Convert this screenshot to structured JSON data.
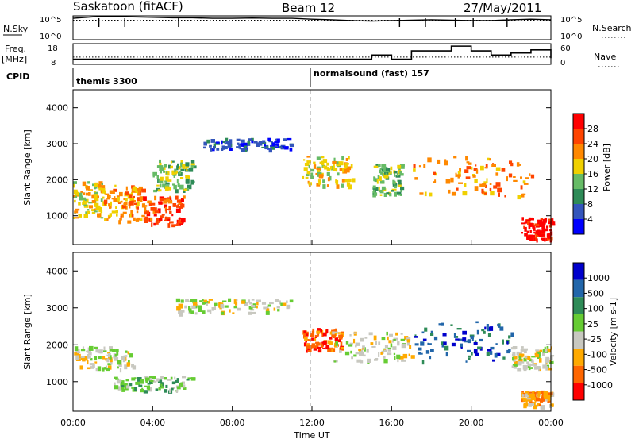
{
  "header": {
    "station": "Saskatoon (fitACF)",
    "beam": "Beam 12",
    "date": "27/May/2011"
  },
  "nsky_panel": {
    "left_label": "N.Sky",
    "left_ticks": [
      "10^5",
      "10^0"
    ],
    "right_ticks": [
      "10^5",
      "10^0"
    ],
    "right_label": "N.Search",
    "right_legend_line": "dotted"
  },
  "freq_panel": {
    "left_label_line1": "Freq.",
    "left_label_line2": "[MHz]",
    "left_ticks": [
      "18",
      "8"
    ],
    "right_ticks": [
      "60",
      "0"
    ],
    "right_label": "Nave",
    "right_legend_line": "dotted"
  },
  "cpid_panel": {
    "label": "CPID",
    "entries": [
      {
        "name": "themis 3300",
        "start_hour": 0
      },
      {
        "name": "normalsound (fast) 157",
        "start_hour": 12
      }
    ]
  },
  "x_axis": {
    "label": "Time UT",
    "ticks": [
      "00:00",
      "04:00",
      "08:00",
      "12:00",
      "16:00",
      "20:00",
      "00:00"
    ],
    "range_hours": [
      0,
      24
    ]
  },
  "colors": {
    "power": [
      "#0000ff",
      "#3355bb",
      "#2e8b57",
      "#66bb66",
      "#f0d000",
      "#ff8800",
      "#ff4400",
      "#ff0000"
    ],
    "velocity": [
      "#ff0000",
      "#ff6600",
      "#ffaa00",
      "#c8c8c0",
      "#66cc33",
      "#2e8b57",
      "#2266aa",
      "#0000cc"
    ]
  },
  "chart_data": [
    {
      "type": "line",
      "panel": "N.Sky / N.Search",
      "x": [
        0,
        1,
        2,
        3,
        4,
        5,
        6,
        7,
        8,
        9,
        10,
        11,
        12,
        13,
        14,
        15,
        16,
        17,
        18,
        19,
        20,
        21,
        22,
        23,
        24
      ],
      "series": [
        {
          "name": "N.Sky",
          "values": [
            30000,
            60000,
            70000,
            60000,
            50000,
            40000,
            40000,
            30000,
            30000,
            35000,
            30000,
            30000,
            20000,
            15000,
            10000,
            8000,
            10000,
            12000,
            15000,
            12000,
            10000,
            10000,
            15000,
            20000,
            15000
          ]
        },
        {
          "name": "N.Search",
          "values": [
            12000,
            12000,
            12000,
            12000,
            12000,
            12000,
            12000,
            12000,
            12000,
            12000,
            12000,
            12000,
            12000,
            12000,
            12000,
            12000,
            12000,
            12000,
            12000,
            12000,
            12000,
            12000,
            12000,
            12000,
            12000
          ]
        }
      ],
      "ylim_log10": [
        0,
        5
      ]
    },
    {
      "type": "line",
      "panel": "Freq / Nave",
      "x": [
        0,
        1,
        2,
        3,
        4,
        5,
        6,
        7,
        8,
        9,
        10,
        11,
        12,
        13,
        14,
        15,
        16,
        17,
        18,
        19,
        20,
        21,
        22,
        23,
        24
      ],
      "series": [
        {
          "name": "Freq",
          "values": [
            10.5,
            10.5,
            10.5,
            10.5,
            10.5,
            10.5,
            10.5,
            10.5,
            10.5,
            10.5,
            10.5,
            10.5,
            10.5,
            10.5,
            10.5,
            12.5,
            10.5,
            14.5,
            14.5,
            16.8,
            14.5,
            12.5,
            13.5,
            15,
            11
          ]
        },
        {
          "name": "Nave",
          "values": [
            21,
            21,
            21,
            21,
            21,
            21,
            21,
            21,
            21,
            21,
            21,
            21,
            21,
            21,
            21,
            21,
            21,
            21,
            21,
            21,
            21,
            21,
            21,
            21,
            21
          ]
        }
      ],
      "ylim_freq": [
        8,
        18
      ],
      "ylim_nave": [
        0,
        60
      ]
    },
    {
      "type": "heatmap",
      "panel": "Power",
      "ylabel": "Slant Range [km]",
      "yticks": [
        1000,
        2000,
        3000,
        4000
      ],
      "ylim": [
        200,
        4500
      ],
      "colorbar_label": "Power [dB]",
      "colorbar_ticks": [
        4,
        8,
        12,
        16,
        20,
        24,
        28
      ],
      "regions": [
        {
          "t0": 0,
          "t1": 1.5,
          "r0": 900,
          "r1": 1900,
          "level": 4
        },
        {
          "t0": 1.5,
          "t1": 3.5,
          "r0": 800,
          "r1": 1800,
          "level": 5
        },
        {
          "t0": 3.5,
          "t1": 5.5,
          "r0": 700,
          "r1": 1500,
          "level": 6
        },
        {
          "t0": 4,
          "t1": 6,
          "r0": 1600,
          "r1": 2500,
          "level": 3
        },
        {
          "t0": 6.5,
          "t1": 11,
          "r0": 2800,
          "r1": 3100,
          "level": 1
        },
        {
          "t0": 11.5,
          "t1": 14,
          "r0": 1800,
          "r1": 2600,
          "level": 4
        },
        {
          "t0": 15,
          "t1": 16.5,
          "r0": 1500,
          "r1": 2400,
          "level": 3
        },
        {
          "t0": 17,
          "t1": 23,
          "r0": 1500,
          "r1": 2600,
          "level": 5
        },
        {
          "t0": 22.5,
          "t1": 24,
          "r0": 300,
          "r1": 900,
          "level": 7
        }
      ]
    },
    {
      "type": "heatmap",
      "panel": "Velocity",
      "ylabel": "Slant Range [km]",
      "yticks": [
        1000,
        2000,
        3000,
        4000
      ],
      "ylim": [
        200,
        4500
      ],
      "colorbar_label": "Velocity [m s-1]",
      "colorbar_ticks": [
        1000,
        500,
        100,
        25,
        -25,
        -100,
        -500,
        -1000
      ],
      "regions": [
        {
          "t0": 0,
          "t1": 3,
          "r0": 1300,
          "r1": 1900,
          "level": 3
        },
        {
          "t0": 2,
          "t1": 6,
          "r0": 700,
          "r1": 1100,
          "level": 4
        },
        {
          "t0": 5,
          "t1": 11,
          "r0": 2800,
          "r1": 3200,
          "level": 3
        },
        {
          "t0": 11.5,
          "t1": 13.5,
          "r0": 1800,
          "r1": 2400,
          "level": 1
        },
        {
          "t0": 13,
          "t1": 17,
          "r0": 1500,
          "r1": 2300,
          "level": 3
        },
        {
          "t0": 17,
          "t1": 22,
          "r0": 1500,
          "r1": 2600,
          "level": 6
        },
        {
          "t0": 22,
          "t1": 24,
          "r0": 1300,
          "r1": 1900,
          "level": 3
        },
        {
          "t0": 22.5,
          "t1": 24,
          "r0": 300,
          "r1": 700,
          "level": 2
        }
      ]
    }
  ]
}
